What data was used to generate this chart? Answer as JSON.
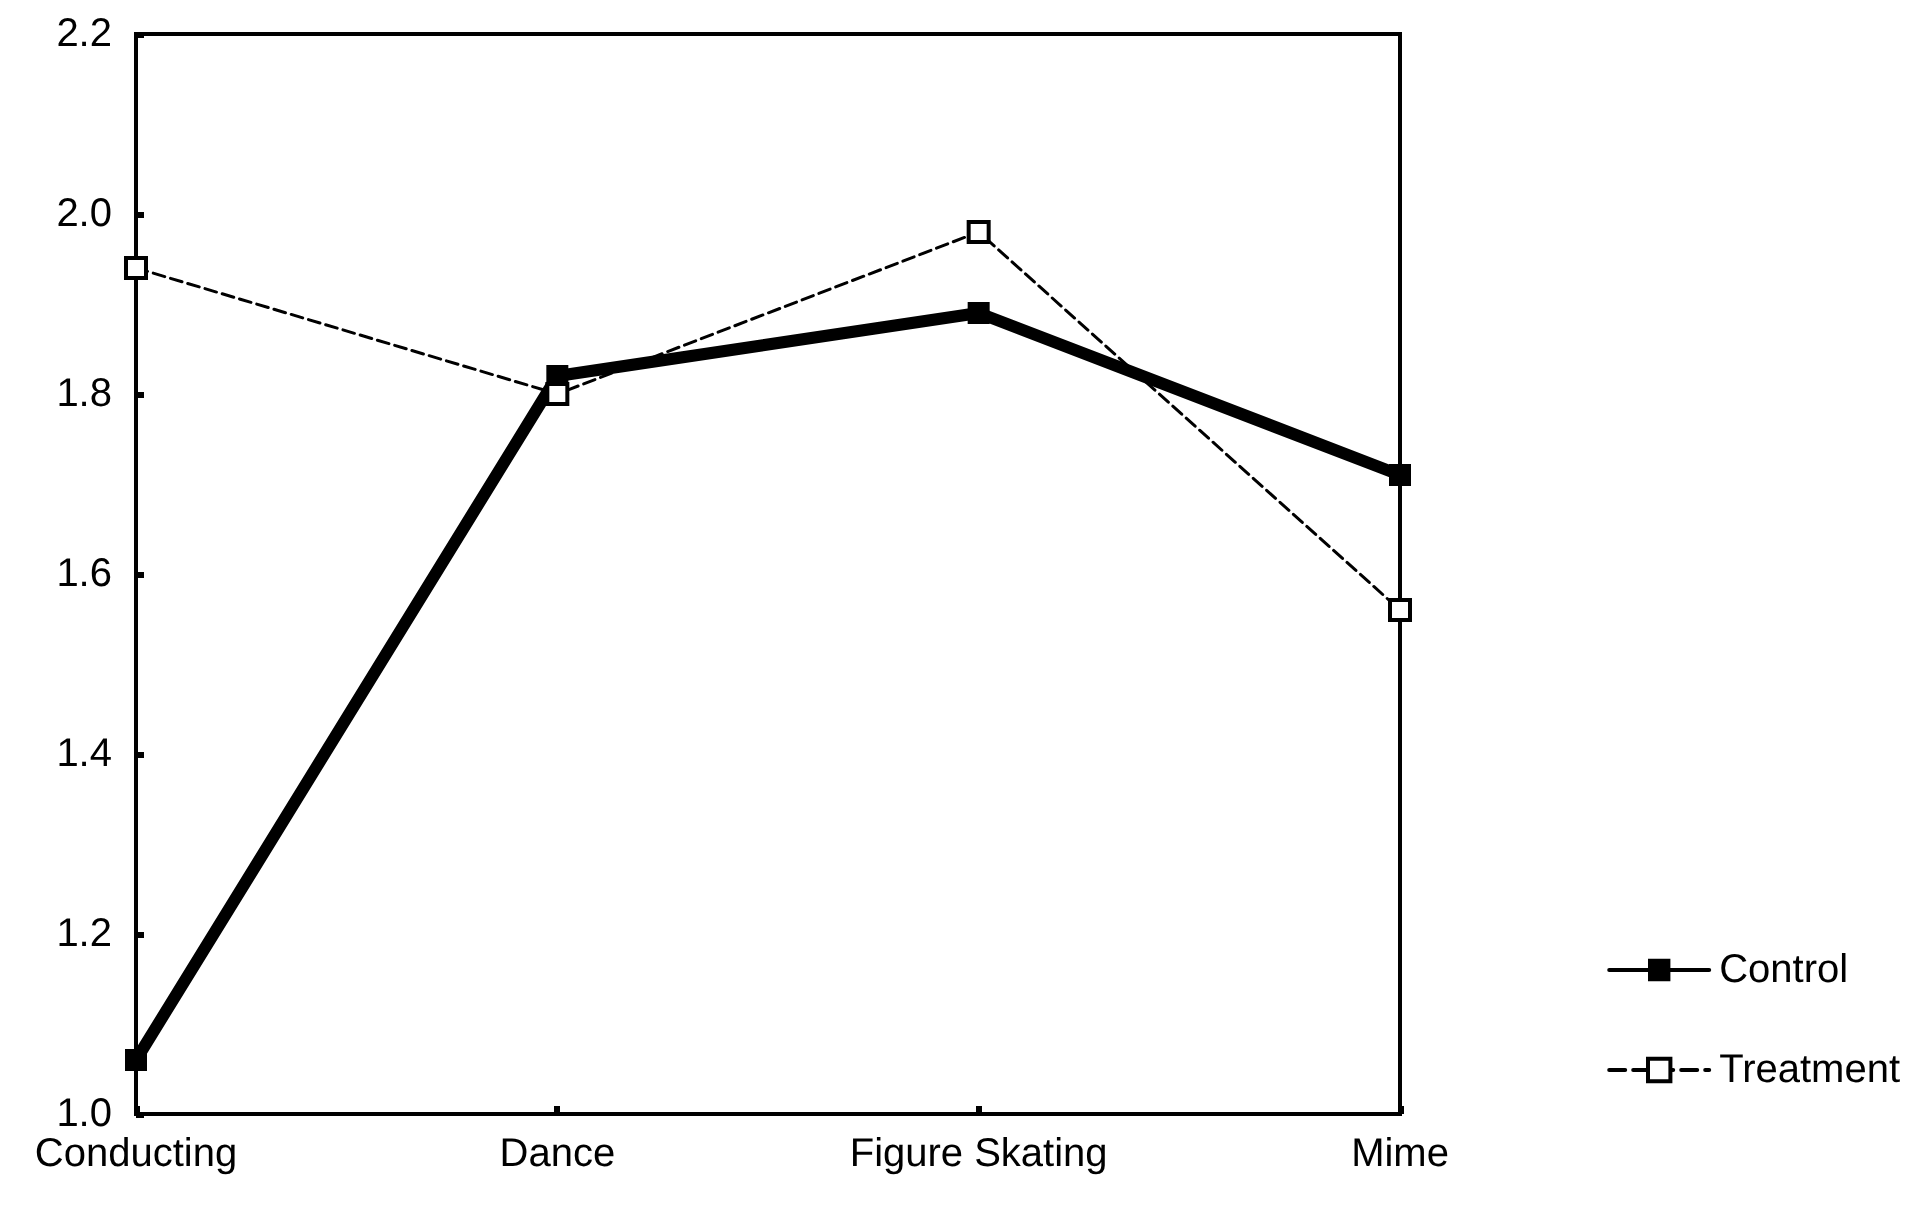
{
  "chart_data": {
    "type": "line",
    "categories": [
      "Conducting",
      "Dance",
      "Figure Skating",
      "Mime"
    ],
    "series": [
      {
        "name": "Control",
        "color": "#000000",
        "values": [
          1.06,
          1.82,
          1.89,
          1.71
        ],
        "line_style": "solid",
        "marker": "square"
      },
      {
        "name": "Treatment",
        "color": "#000000",
        "values": [
          1.94,
          1.8,
          1.98,
          1.56
        ],
        "line_style": "dashed",
        "marker": "square"
      }
    ],
    "ylim": [
      1.0,
      2.2
    ],
    "yticks": [
      {
        "value": 1.0,
        "label": "1.0"
      },
      {
        "value": 1.2,
        "label": "1.2"
      },
      {
        "value": 1.4,
        "label": "1.4"
      },
      {
        "value": 1.6,
        "label": "1.6"
      },
      {
        "value": 1.8,
        "label": "1.8"
      },
      {
        "value": 2.0,
        "label": "2.0"
      },
      {
        "value": 2.2,
        "label": "2.2"
      }
    ],
    "grid": false,
    "legend": "bottom right"
  }
}
